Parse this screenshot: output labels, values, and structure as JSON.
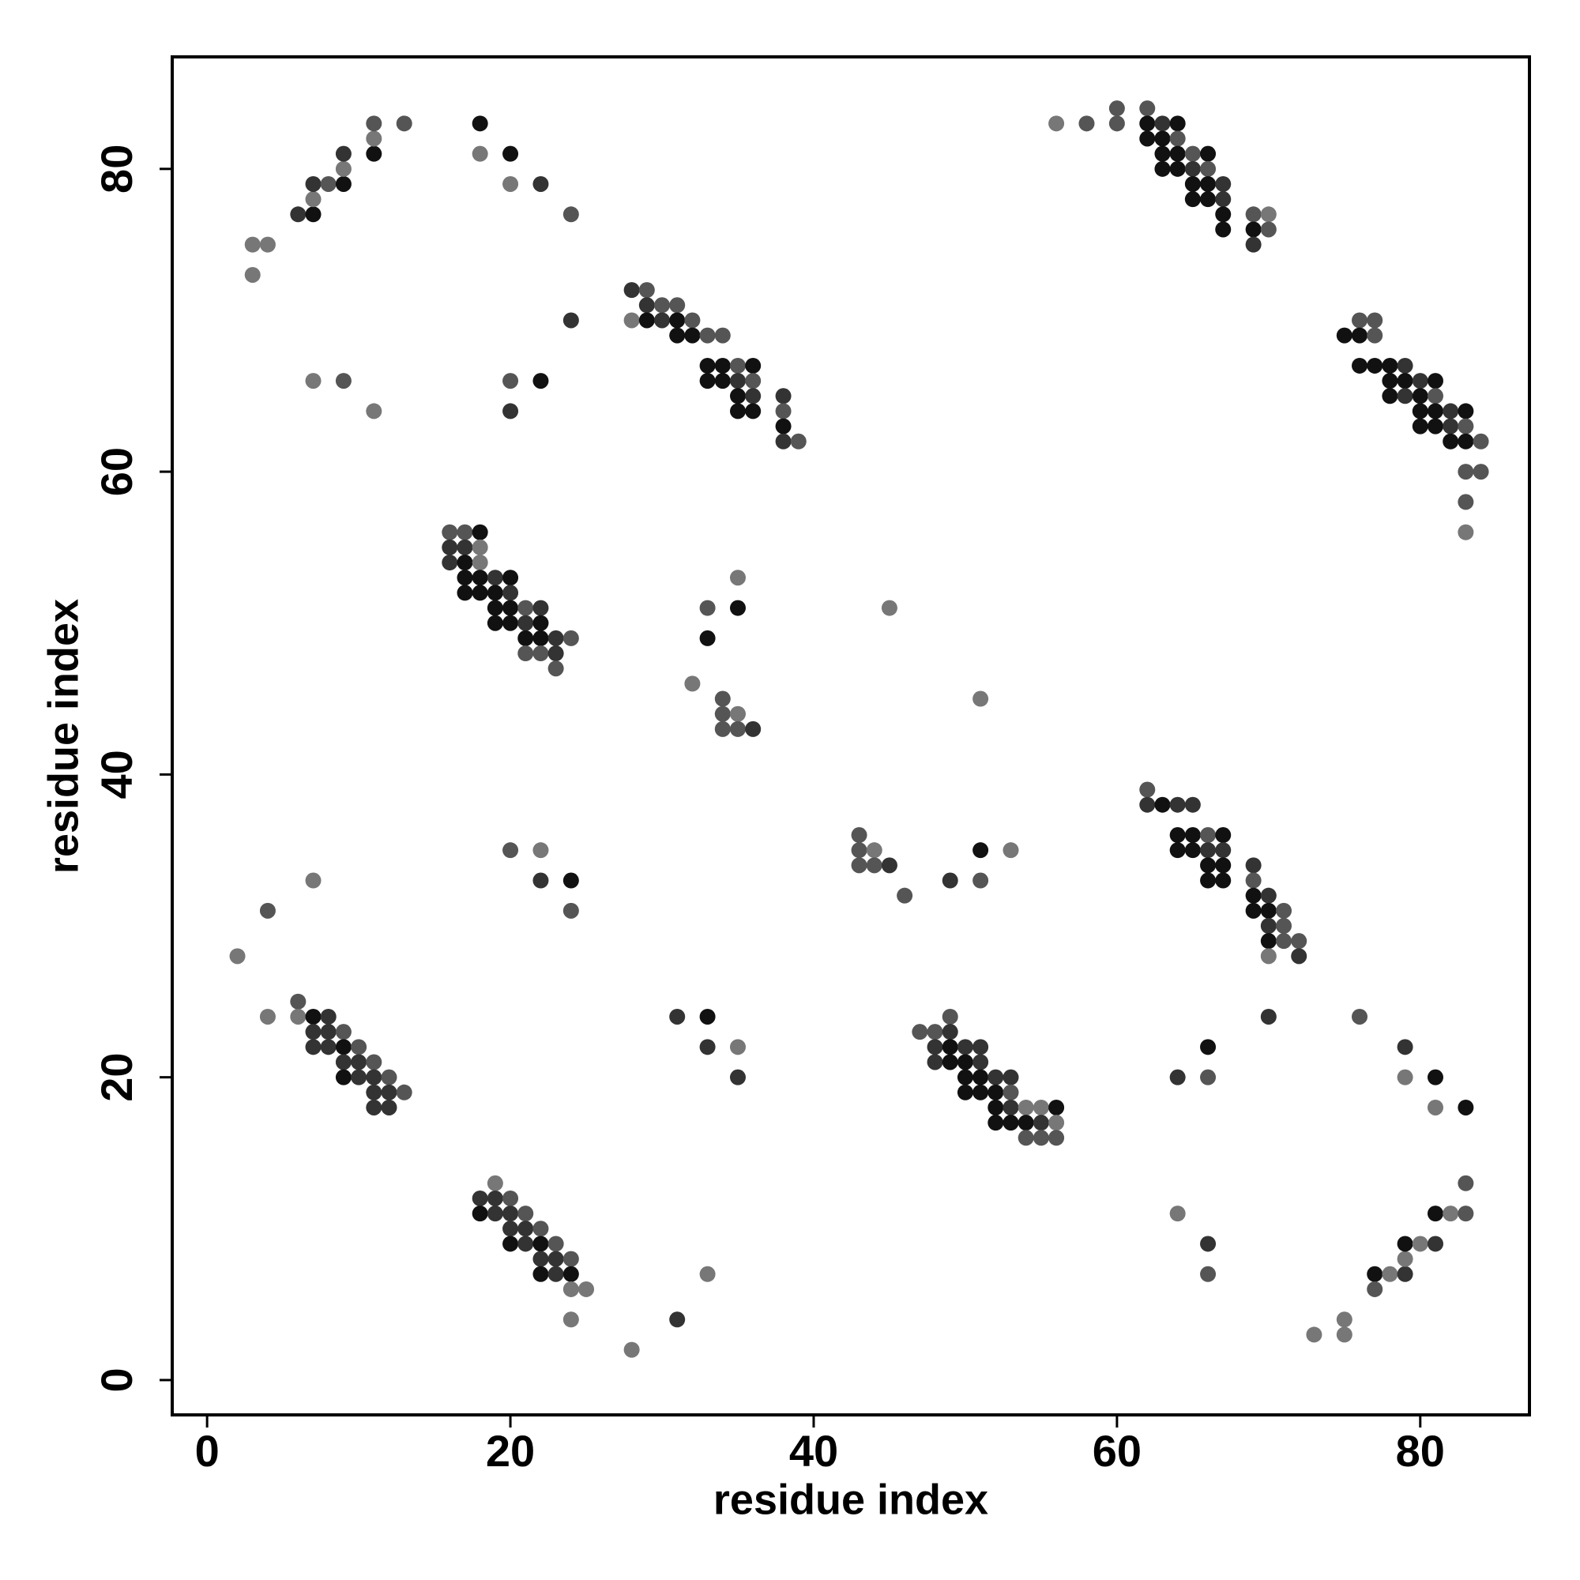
{
  "chart_data": {
    "type": "scatter",
    "xlabel": "residue index",
    "ylabel": "residue index",
    "xlim": [
      -2.3,
      87.2
    ],
    "ylim": [
      -2.3,
      87.4
    ],
    "xticks": [
      0,
      20,
      40,
      60,
      80
    ],
    "yticks": [
      0,
      20,
      40,
      60,
      80
    ],
    "x": [
      3,
      4,
      3,
      6,
      7,
      7,
      7,
      8,
      9,
      9,
      9,
      11,
      11,
      11,
      13,
      18,
      18,
      20,
      20,
      22,
      24,
      24,
      7,
      9,
      11,
      20,
      20,
      22,
      28,
      29,
      29,
      30,
      31,
      28,
      29,
      30,
      31,
      32,
      31,
      32,
      33,
      34,
      33,
      34,
      35,
      36,
      33,
      34,
      35,
      36,
      35,
      36,
      38,
      35,
      36,
      38,
      38,
      38,
      39,
      60,
      62,
      56,
      58,
      60,
      62,
      63,
      64,
      62,
      63,
      64,
      63,
      64,
      65,
      66,
      63,
      64,
      65,
      66,
      65,
      66,
      67,
      65,
      66,
      67,
      67,
      69,
      70,
      67,
      69,
      70,
      69,
      76,
      77,
      75,
      76,
      77,
      76,
      77,
      78,
      79,
      78,
      79,
      80,
      81,
      78,
      79,
      80,
      81,
      80,
      81,
      82,
      83,
      80,
      81,
      82,
      83,
      82,
      83,
      84,
      83,
      84,
      83,
      83,
      16,
      17,
      18,
      16,
      17,
      18,
      16,
      17,
      18,
      17,
      18,
      19,
      20,
      17,
      18,
      19,
      20,
      19,
      20,
      21,
      22,
      19,
      20,
      21,
      22,
      21,
      22,
      23,
      24,
      21,
      22,
      23,
      23,
      33,
      35,
      35,
      33,
      32,
      34,
      34,
      35,
      34,
      35,
      36,
      45,
      51,
      43,
      43,
      44,
      43,
      44,
      45,
      46,
      49,
      51,
      51,
      53,
      62,
      62,
      63,
      64,
      65,
      64,
      65,
      66,
      67,
      64,
      65,
      66,
      67,
      66,
      67,
      69,
      66,
      67,
      69,
      69,
      70,
      69,
      70,
      71,
      70,
      71,
      70,
      71,
      72,
      70,
      72,
      7,
      4,
      2,
      20,
      22,
      22,
      24,
      24,
      6,
      4,
      6,
      7,
      8,
      7,
      8,
      9,
      7,
      8,
      9,
      10,
      9,
      10,
      11,
      9,
      10,
      11,
      12,
      11,
      12,
      13,
      11,
      12,
      31,
      33,
      33,
      35,
      35,
      49,
      47,
      48,
      49,
      48,
      49,
      50,
      51,
      48,
      49,
      50,
      51,
      50,
      51,
      52,
      53,
      50,
      51,
      52,
      53,
      52,
      53,
      54,
      55,
      56,
      52,
      53,
      54,
      55,
      56,
      54,
      55,
      56,
      70,
      66,
      64,
      66,
      76,
      79,
      79,
      81,
      81,
      83,
      19,
      18,
      19,
      20,
      18,
      19,
      20,
      21,
      20,
      21,
      22,
      20,
      21,
      22,
      23,
      22,
      23,
      24,
      22,
      23,
      24,
      24,
      25,
      24,
      28,
      31,
      33,
      64,
      66,
      66,
      73,
      75,
      75,
      77,
      77,
      78,
      79,
      79,
      79,
      80,
      81,
      81,
      82,
      83,
      83
    ],
    "values": [
      75,
      75,
      73,
      77,
      77,
      78,
      79,
      79,
      79,
      80,
      81,
      81,
      82,
      83,
      83,
      83,
      81,
      81,
      79,
      79,
      77,
      70,
      66,
      66,
      64,
      66,
      64,
      66,
      72,
      72,
      71,
      71,
      71,
      70,
      70,
      70,
      70,
      70,
      69,
      69,
      69,
      69,
      67,
      67,
      67,
      67,
      66,
      66,
      66,
      66,
      65,
      65,
      65,
      64,
      64,
      64,
      63,
      62,
      62,
      84,
      84,
      83,
      83,
      83,
      83,
      83,
      83,
      82,
      82,
      82,
      81,
      81,
      81,
      81,
      80,
      80,
      80,
      80,
      79,
      79,
      79,
      78,
      78,
      78,
      77,
      77,
      77,
      76,
      76,
      76,
      75,
      70,
      70,
      69,
      69,
      69,
      67,
      67,
      67,
      67,
      66,
      66,
      66,
      66,
      65,
      65,
      65,
      65,
      64,
      64,
      64,
      64,
      63,
      63,
      63,
      63,
      62,
      62,
      62,
      60,
      60,
      58,
      56,
      56,
      56,
      56,
      55,
      55,
      55,
      54,
      54,
      54,
      53,
      53,
      53,
      53,
      52,
      52,
      52,
      52,
      51,
      51,
      51,
      51,
      50,
      50,
      50,
      50,
      49,
      49,
      49,
      49,
      48,
      48,
      48,
      47,
      51,
      53,
      51,
      49,
      46,
      45,
      44,
      44,
      43,
      43,
      43,
      51,
      45,
      36,
      35,
      35,
      34,
      34,
      34,
      32,
      33,
      35,
      33,
      35,
      39,
      38,
      38,
      38,
      38,
      36,
      36,
      36,
      36,
      35,
      35,
      35,
      35,
      34,
      34,
      34,
      33,
      33,
      33,
      32,
      32,
      31,
      31,
      31,
      30,
      30,
      29,
      29,
      29,
      28,
      28,
      33,
      31,
      28,
      35,
      35,
      33,
      33,
      31,
      25,
      24,
      24,
      24,
      24,
      23,
      23,
      23,
      22,
      22,
      22,
      22,
      21,
      21,
      21,
      20,
      20,
      20,
      20,
      19,
      19,
      19,
      18,
      18,
      24,
      24,
      22,
      22,
      20,
      24,
      23,
      23,
      23,
      22,
      22,
      22,
      22,
      21,
      21,
      21,
      21,
      20,
      20,
      20,
      20,
      19,
      19,
      19,
      19,
      18,
      18,
      18,
      18,
      18,
      17,
      17,
      17,
      17,
      17,
      16,
      16,
      16,
      24,
      22,
      20,
      20,
      24,
      22,
      20,
      20,
      18,
      18,
      13,
      12,
      12,
      12,
      11,
      11,
      11,
      11,
      10,
      10,
      10,
      9,
      9,
      9,
      9,
      8,
      8,
      8,
      7,
      7,
      7,
      6,
      6,
      4,
      2,
      4,
      7,
      11,
      9,
      7,
      3,
      4,
      3,
      7,
      6,
      7,
      7,
      8,
      9,
      9,
      9,
      11,
      11,
      11,
      13
    ],
    "colors": [
      "#777",
      "#777",
      "#777",
      "#333",
      "#111",
      "#777",
      "#333",
      "#555",
      "#111",
      "#777",
      "#333",
      "#111",
      "#777",
      "#555",
      "#555",
      "#111",
      "#777",
      "#111",
      "#777",
      "#333",
      "#555",
      "#333",
      "#777",
      "#555",
      "#777",
      "#555",
      "#333",
      "#111",
      "#333",
      "#555",
      "#333",
      "#555",
      "#555",
      "#777",
      "#111",
      "#333",
      "#111",
      "#555",
      "#111",
      "#111",
      "#555",
      "#555",
      "#111",
      "#111",
      "#555",
      "#111",
      "#111",
      "#111",
      "#333",
      "#555",
      "#111",
      "#333",
      "#333",
      "#111",
      "#111",
      "#555",
      "#111",
      "#333",
      "#555",
      "#555",
      "#555",
      "#777",
      "#555",
      "#555",
      "#111",
      "#333",
      "#111",
      "#111",
      "#111",
      "#555",
      "#111",
      "#111",
      "#555",
      "#111",
      "#111",
      "#111",
      "#333",
      "#555",
      "#111",
      "#111",
      "#333",
      "#111",
      "#111",
      "#333",
      "#111",
      "#555",
      "#777",
      "#111",
      "#111",
      "#555",
      "#333",
      "#555",
      "#555",
      "#111",
      "#111",
      "#555",
      "#111",
      "#111",
      "#111",
      "#333",
      "#111",
      "#111",
      "#333",
      "#111",
      "#111",
      "#333",
      "#111",
      "#555",
      "#111",
      "#111",
      "#333",
      "#111",
      "#111",
      "#111",
      "#333",
      "#555",
      "#111",
      "#111",
      "#555",
      "#555",
      "#555",
      "#555",
      "#777",
      "#555",
      "#555",
      "#111",
      "#333",
      "#333",
      "#777",
      "#333",
      "#111",
      "#777",
      "#111",
      "#111",
      "#333",
      "#111",
      "#111",
      "#111",
      "#111",
      "#333",
      "#111",
      "#111",
      "#555",
      "#333",
      "#111",
      "#111",
      "#333",
      "#111",
      "#111",
      "#111",
      "#333",
      "#555",
      "#555",
      "#555",
      "#333",
      "#555",
      "#555",
      "#777",
      "#111",
      "#111",
      "#777",
      "#555",
      "#555",
      "#777",
      "#555",
      "#555",
      "#333",
      "#777",
      "#777",
      "#555",
      "#555",
      "#777",
      "#555",
      "#555",
      "#333",
      "#555",
      "#333",
      "#111",
      "#555",
      "#777",
      "#555",
      "#333",
      "#111",
      "#333",
      "#333",
      "#111",
      "#111",
      "#555",
      "#111",
      "#111",
      "#111",
      "#333",
      "#333",
      "#111",
      "#111",
      "#333",
      "#111",
      "#111",
      "#555",
      "#111",
      "#333",
      "#111",
      "#111",
      "#555",
      "#333",
      "#555",
      "#111",
      "#555",
      "#555",
      "#777",
      "#333",
      "#777",
      "#555",
      "#777",
      "#555",
      "#777",
      "#333",
      "#111",
      "#555",
      "#555",
      "#777",
      "#777",
      "#111",
      "#333",
      "#333",
      "#333",
      "#555",
      "#333",
      "#333",
      "#111",
      "#555",
      "#333",
      "#333",
      "#555",
      "#111",
      "#333",
      "#333",
      "#555",
      "#333",
      "#333",
      "#555",
      "#333",
      "#333",
      "#333",
      "#111",
      "#333",
      "#777",
      "#333",
      "#555",
      "#555",
      "#555",
      "#333",
      "#333",
      "#111",
      "#333",
      "#333",
      "#333",
      "#111",
      "#111",
      "#333",
      "#111",
      "#111",
      "#333",
      "#333",
      "#111",
      "#111",
      "#111",
      "#555",
      "#111",
      "#333",
      "#777",
      "#777",
      "#111",
      "#111",
      "#111",
      "#111",
      "#333",
      "#777",
      "#555",
      "#555",
      "#555",
      "#333",
      "#111",
      "#333",
      "#555",
      "#555",
      "#333",
      "#777",
      "#111",
      "#777",
      "#111",
      "#777",
      "#333",
      "#333",
      "#555",
      "#111",
      "#333",
      "#333",
      "#555",
      "#333",
      "#333",
      "#555",
      "#111",
      "#333",
      "#111",
      "#555",
      "#333",
      "#333",
      "#555",
      "#111",
      "#333",
      "#111",
      "#777",
      "#777",
      "#777",
      "#777",
      "#333",
      "#777",
      "#777",
      "#333",
      "#555",
      "#777",
      "#777",
      "#777",
      "#111",
      "#555",
      "#777",
      "#333",
      "#777",
      "#111",
      "#777",
      "#333",
      "#111",
      "#777",
      "#555",
      "#555"
    ]
  }
}
